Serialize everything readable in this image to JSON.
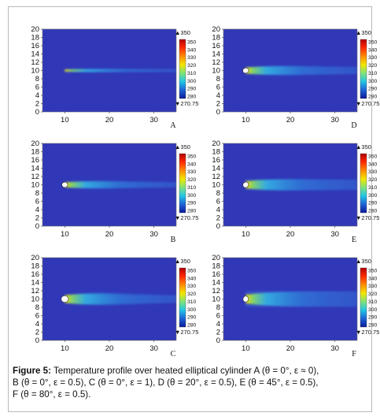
{
  "figure": {
    "label": "Figure 5:",
    "caption_lines": [
      "Temperature profile over heated elliptical cylinder A (θ = 0°, ε ≈ 0),",
      "B (θ = 0°,  ε = 0.5), C (θ = 0°, ε = 1), D (θ = 20°, ε = 0.5), E (θ = 45°, ε = 0.5),",
      "F (θ = 80°, ε = 0.5)."
    ]
  },
  "colorbar": {
    "max_label": "▲350",
    "min_label": "▼270.75",
    "tick_labels": [
      "350",
      "340",
      "330",
      "320",
      "310",
      "300",
      "290",
      "280"
    ],
    "colors": [
      "#b30000",
      "#ff2a00",
      "#ff8c00",
      "#f2e600",
      "#7fe37a",
      "#22c6e6",
      "#1e63d6",
      "#0a1a9c"
    ]
  },
  "axes": {
    "y_tick_labels": [
      "20",
      "18",
      "16",
      "14",
      "12",
      "10",
      "8",
      "6",
      "4",
      "2",
      "0"
    ],
    "x_tick_labels": [
      "10",
      "20",
      "30"
    ],
    "xlim": [
      5,
      35
    ],
    "ylim": [
      0,
      20
    ]
  },
  "chart_data": [
    {
      "type": "heatmap",
      "panel": "A",
      "theta_deg": 0,
      "epsilon": 0,
      "cylinder_center": [
        10,
        10
      ],
      "x_tick_labels": [
        "10",
        "20",
        "30"
      ],
      "y_tick_labels": [
        "20",
        "18",
        "16",
        "14",
        "12",
        "10",
        "8",
        "6",
        "4",
        "2",
        "0"
      ],
      "xlim": [
        5,
        35
      ],
      "ylim": [
        0,
        20
      ],
      "color_range": [
        270.75,
        350
      ]
    },
    {
      "type": "heatmap",
      "panel": "D",
      "theta_deg": 20,
      "epsilon": 0.5,
      "cylinder_center": [
        10,
        10
      ],
      "x_tick_labels": [
        "10",
        "20",
        "30"
      ],
      "y_tick_labels": [
        "20",
        "18",
        "16",
        "14",
        "12",
        "10",
        "8",
        "6",
        "4",
        "2",
        "0"
      ],
      "xlim": [
        5,
        35
      ],
      "ylim": [
        0,
        20
      ],
      "color_range": [
        270.75,
        350
      ]
    },
    {
      "type": "heatmap",
      "panel": "B",
      "theta_deg": 0,
      "epsilon": 0.5,
      "cylinder_center": [
        10,
        10
      ],
      "x_tick_labels": [
        "10",
        "20",
        "30"
      ],
      "y_tick_labels": [
        "20",
        "18",
        "16",
        "14",
        "12",
        "10",
        "8",
        "6",
        "4",
        "2",
        "0"
      ],
      "xlim": [
        5,
        35
      ],
      "ylim": [
        0,
        20
      ],
      "color_range": [
        270.75,
        350
      ]
    },
    {
      "type": "heatmap",
      "panel": "E",
      "theta_deg": 45,
      "epsilon": 0.5,
      "cylinder_center": [
        10,
        10
      ],
      "x_tick_labels": [
        "10",
        "20",
        "30"
      ],
      "y_tick_labels": [
        "20",
        "18",
        "16",
        "14",
        "12",
        "10",
        "8",
        "6",
        "4",
        "2",
        "0"
      ],
      "xlim": [
        5,
        35
      ],
      "ylim": [
        0,
        20
      ],
      "color_range": [
        270.75,
        350
      ]
    },
    {
      "type": "heatmap",
      "panel": "C",
      "theta_deg": 0,
      "epsilon": 1,
      "cylinder_center": [
        10,
        10
      ],
      "x_tick_labels": [
        "10",
        "20",
        "30"
      ],
      "y_tick_labels": [
        "20",
        "18",
        "16",
        "14",
        "12",
        "10",
        "8",
        "6",
        "4",
        "2",
        "0"
      ],
      "xlim": [
        5,
        35
      ],
      "ylim": [
        0,
        20
      ],
      "color_range": [
        270.75,
        350
      ]
    },
    {
      "type": "heatmap",
      "panel": "F",
      "theta_deg": 80,
      "epsilon": 0.5,
      "cylinder_center": [
        10,
        10
      ],
      "x_tick_labels": [
        "10",
        "20",
        "30"
      ],
      "y_tick_labels": [
        "20",
        "18",
        "16",
        "14",
        "12",
        "10",
        "8",
        "6",
        "4",
        "2",
        "0"
      ],
      "xlim": [
        5,
        35
      ],
      "ylim": [
        0,
        20
      ],
      "color_range": [
        270.75,
        350
      ]
    }
  ]
}
